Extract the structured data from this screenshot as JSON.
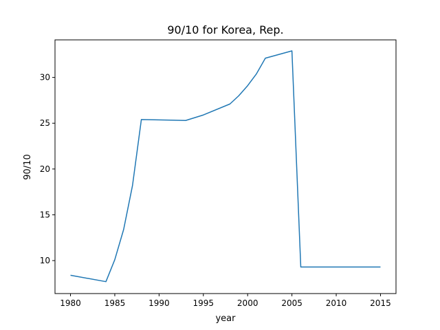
{
  "chart_data": {
    "type": "line",
    "title": "90/10 for Korea, Rep.",
    "xlabel": "year",
    "ylabel": "90/10",
    "xlim": [
      1978.25,
      1916.75
    ],
    "ylim": [
      6.4,
      34.1
    ],
    "xticks": [
      1980,
      1985,
      1990,
      1995,
      2000,
      2005,
      2010,
      2015
    ],
    "yticks": [
      10,
      15,
      20,
      25,
      30
    ],
    "grid": false,
    "series": [
      {
        "name": "90/10",
        "color": "#1f77b4",
        "x": [
          1980,
          1984,
          1985,
          1986,
          1987,
          1988,
          1993,
          1995,
          1998,
          1999,
          2000,
          2001,
          2002,
          2005,
          2006,
          2015
        ],
        "y": [
          8.4,
          7.7,
          10.1,
          13.4,
          18.2,
          25.4,
          25.3,
          25.9,
          27.1,
          28.0,
          29.1,
          30.4,
          32.1,
          32.9,
          9.3,
          9.3
        ]
      }
    ]
  }
}
